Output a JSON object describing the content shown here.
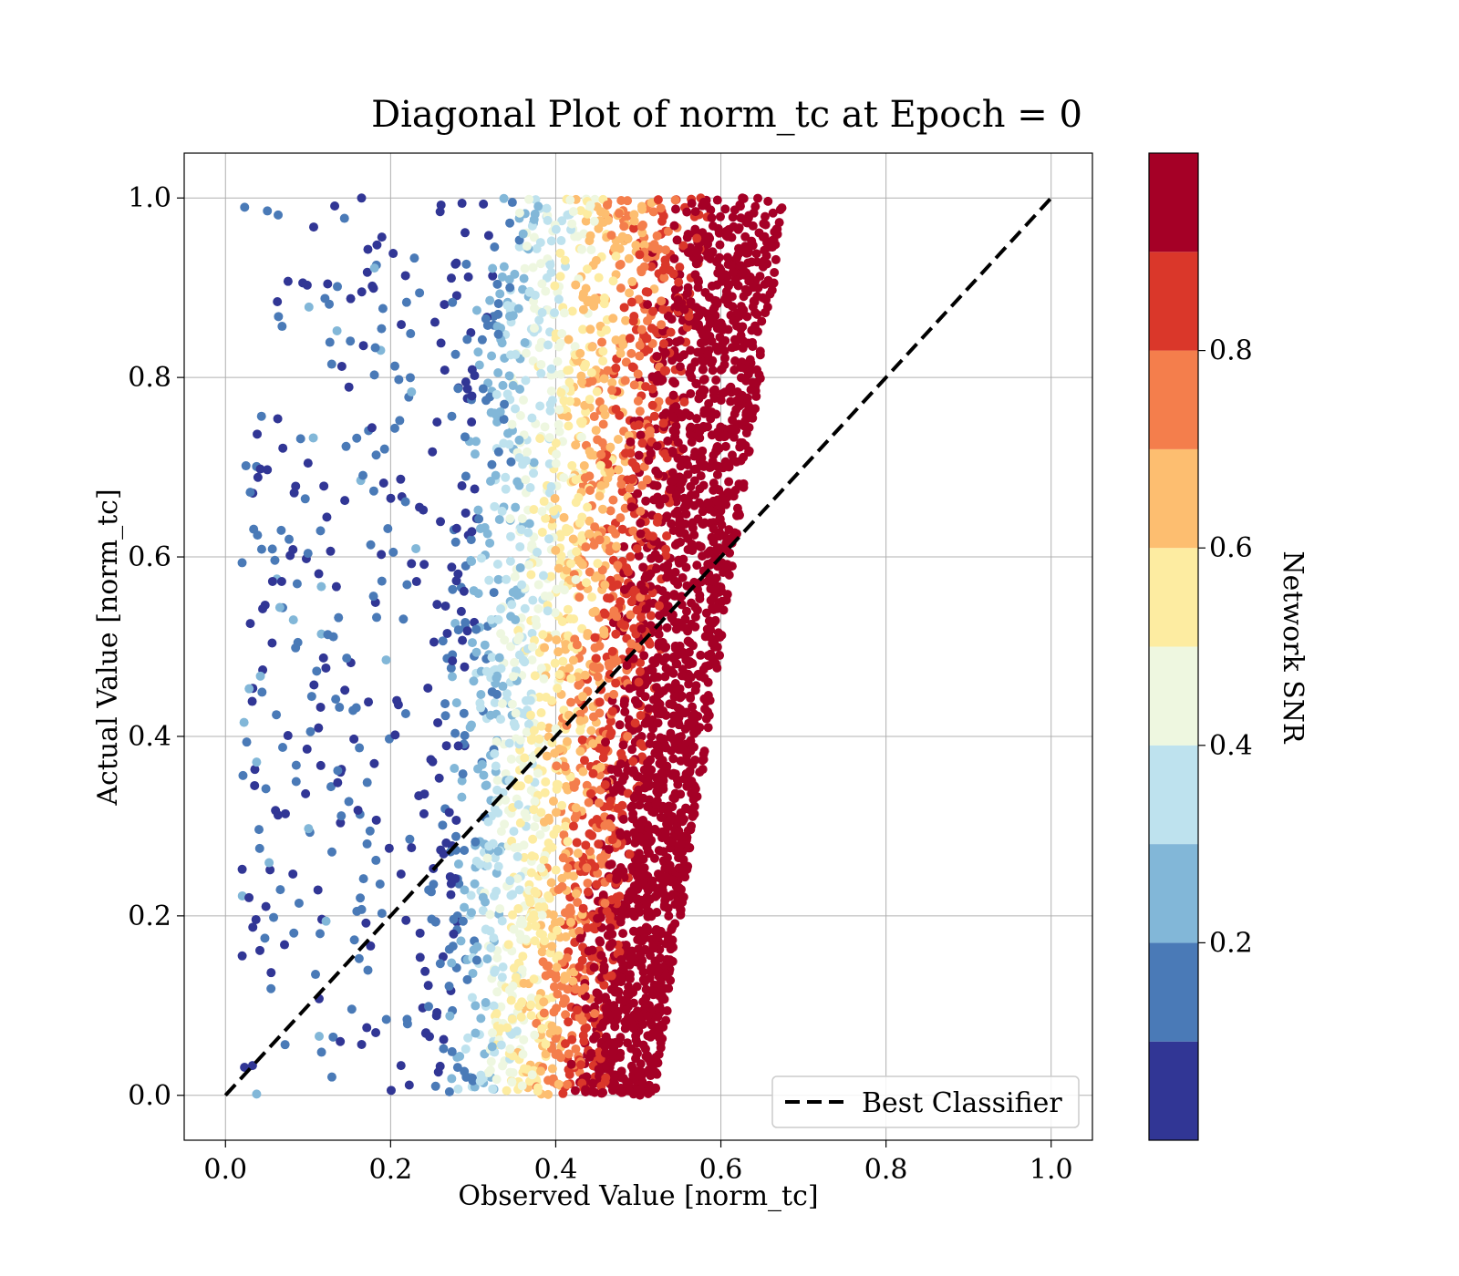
{
  "chart_data": {
    "type": "scatter",
    "title": "Diagonal Plot of norm_tc at Epoch = 0",
    "xlabel": "Observed Value [norm_tc]",
    "ylabel": "Actual Value [norm_tc]",
    "xlim": [
      -0.05,
      1.05
    ],
    "ylim": [
      -0.05,
      1.05
    ],
    "xticks": [
      "0.0",
      "0.2",
      "0.4",
      "0.6",
      "0.8",
      "1.0"
    ],
    "yticks": [
      "0.0",
      "0.2",
      "0.4",
      "0.6",
      "0.8",
      "1.0"
    ],
    "grid": true,
    "reference_line": {
      "label": "Best Classifier",
      "x": [
        0.0,
        1.0
      ],
      "y": [
        0.0,
        1.0
      ],
      "style": "dashed",
      "color": "#000000"
    },
    "legend": {
      "placement": "lower right",
      "entries": [
        "Best Classifier"
      ]
    },
    "colorbar": {
      "label": "Network SNR",
      "range": [
        0.0,
        1.0
      ],
      "ticks": [
        "0.2",
        "0.4",
        "0.6",
        "0.8"
      ],
      "tick_values": [
        0.2,
        0.4,
        0.6,
        0.8
      ],
      "bins": [
        {
          "from": 0.0,
          "to": 0.1,
          "color": "#313695"
        },
        {
          "from": 0.1,
          "to": 0.2,
          "color": "#4a7ab7"
        },
        {
          "from": 0.2,
          "to": 0.3,
          "color": "#82b7d8"
        },
        {
          "from": 0.3,
          "to": 0.4,
          "color": "#bee2ee"
        },
        {
          "from": 0.4,
          "to": 0.5,
          "color": "#eef7e0"
        },
        {
          "from": 0.5,
          "to": 0.6,
          "color": "#fdeca1"
        },
        {
          "from": 0.6,
          "to": 0.7,
          "color": "#fdbe70"
        },
        {
          "from": 0.7,
          "to": 0.8,
          "color": "#f47e4c"
        },
        {
          "from": 0.8,
          "to": 0.9,
          "color": "#da372a"
        },
        {
          "from": 0.9,
          "to": 1.0,
          "color": "#a50026"
        }
      ]
    },
    "series_distribution": {
      "description_of_data": "dense cloud of points; observed value ranges from about 0.02 to 0.68; color (Network SNR) increases with observed value",
      "observed_min_at_actual_0": 0.22,
      "observed_max_at_actual_0": 0.52,
      "observed_min_at_actual_1": 0.24,
      "observed_max_at_actual_1": 0.68,
      "sparse_outliers_min_observed": 0.02
    }
  }
}
